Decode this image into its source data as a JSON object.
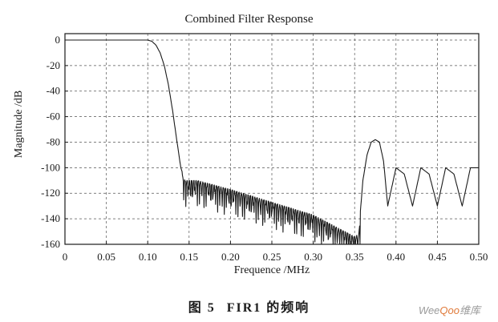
{
  "chart_data": {
    "type": "line",
    "title": "Combined Filter Response",
    "xlabel": "Frequence /MHz",
    "ylabel": "Magnitude /dB",
    "xlim": [
      0,
      0.5
    ],
    "ylim": [
      -160,
      5
    ],
    "x_ticks": [
      "0",
      "0.05",
      "0.10",
      "0.15",
      "0.20",
      "0.25",
      "0.30",
      "0.35",
      "0.40",
      "0.45",
      "0.50"
    ],
    "x_tick_values": [
      0,
      0.05,
      0.1,
      0.15,
      0.2,
      0.25,
      0.3,
      0.35,
      0.4,
      0.45,
      0.5
    ],
    "y_ticks": [
      "0",
      "-20",
      "-40",
      "-60",
      "-80",
      "-100",
      "-120",
      "-140",
      "-160"
    ],
    "y_tick_values": [
      0,
      -20,
      -40,
      -60,
      -80,
      -100,
      -120,
      -140,
      -160
    ],
    "grid": true,
    "grid_style": "dashed",
    "series": [
      {
        "color": "#1a1a1a",
        "x": [
          0,
          0.05,
          0.1,
          0.105,
          0.11,
          0.115,
          0.12,
          0.125,
          0.13,
          0.135,
          0.14,
          0.142,
          0.145,
          0.16,
          0.2,
          0.25,
          0.3,
          0.35,
          0.355,
          0.36,
          0.365,
          0.37,
          0.375,
          0.38,
          0.385,
          0.39,
          0.4,
          0.41,
          0.42,
          0.43,
          0.44,
          0.45,
          0.46,
          0.47,
          0.48,
          0.49,
          0.5
        ],
        "y": [
          0,
          0,
          0,
          -1,
          -4,
          -10,
          -20,
          -35,
          -55,
          -78,
          -100,
          -104,
          -108,
          -108,
          -115,
          -125,
          -135,
          -152,
          -150,
          -110,
          -90,
          -80,
          -78,
          -80,
          -95,
          -130,
          -100,
          -105,
          -130,
          -100,
          -105,
          -130,
          -100,
          -105,
          -130,
          -100,
          -100
        ]
      }
    ]
  },
  "caption": {
    "figure_number": "图 5",
    "text": "FIR1 的频响"
  },
  "watermark": {
    "prefix": "Wee",
    "highlight": "Qoo",
    "suffix": "维库"
  }
}
